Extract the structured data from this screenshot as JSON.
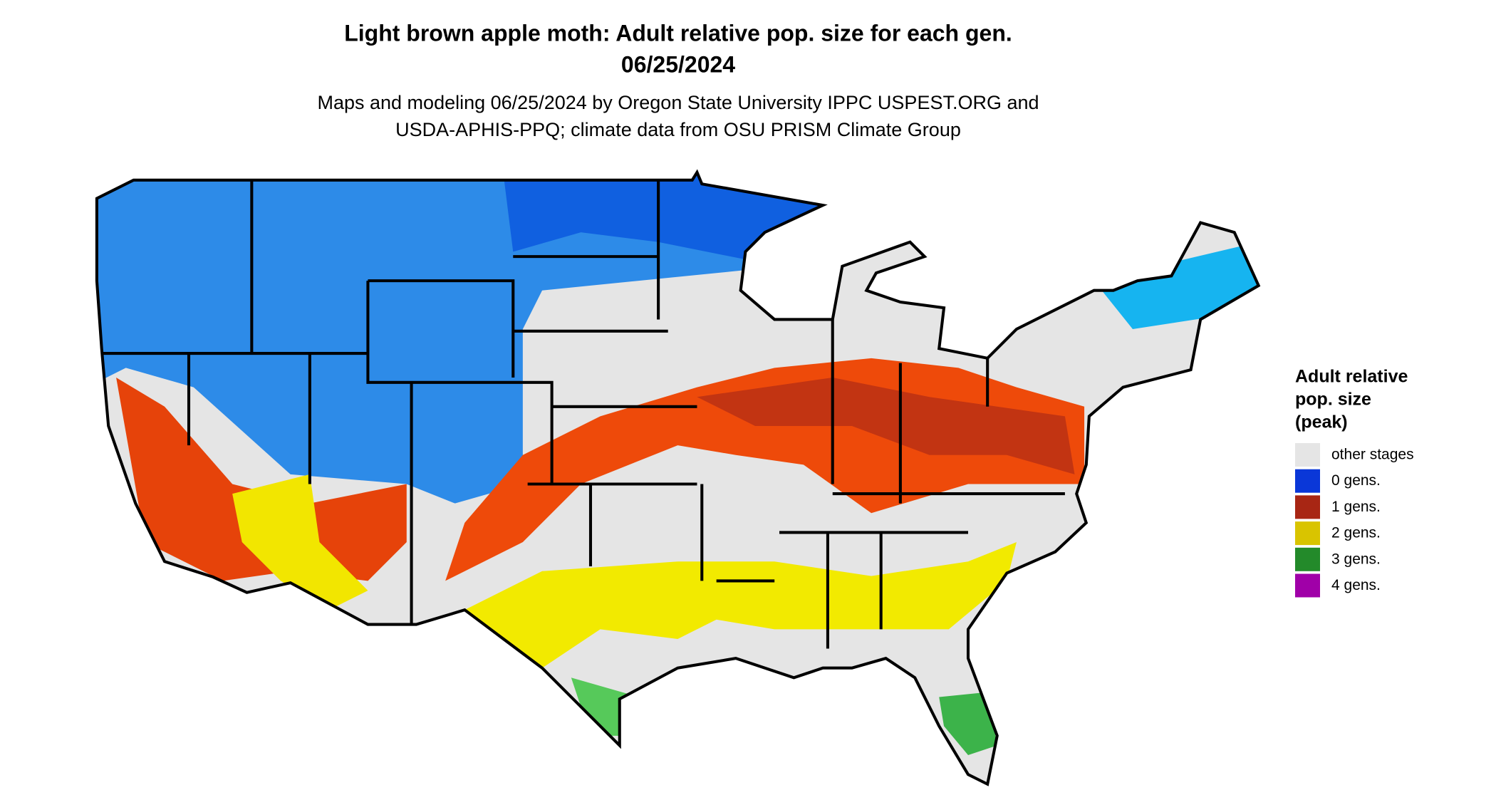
{
  "header": {
    "title": [
      "Light brown apple moth: Adult relative pop. size for each gen.",
      "06/25/2024"
    ],
    "subtitle": [
      "Maps and modeling 06/25/2024 by Oregon State University IPPC USPEST.ORG and",
      "USDA-APHIS-PPQ; climate data from OSU PRISM Climate Group"
    ]
  },
  "legend": {
    "title": [
      "Adult relative",
      "pop. size",
      "(peak)"
    ],
    "items": [
      {
        "label": "other stages",
        "color": "#e5e5e5"
      },
      {
        "label": "0 gens.",
        "color": "#0a37d8"
      },
      {
        "label": "1 gens.",
        "color": "#a82614"
      },
      {
        "label": "2 gens.",
        "color": "#d9c400"
      },
      {
        "label": "3 gens.",
        "color": "#238a2a"
      },
      {
        "label": "4 gens.",
        "color": "#a000a8"
      }
    ]
  }
}
